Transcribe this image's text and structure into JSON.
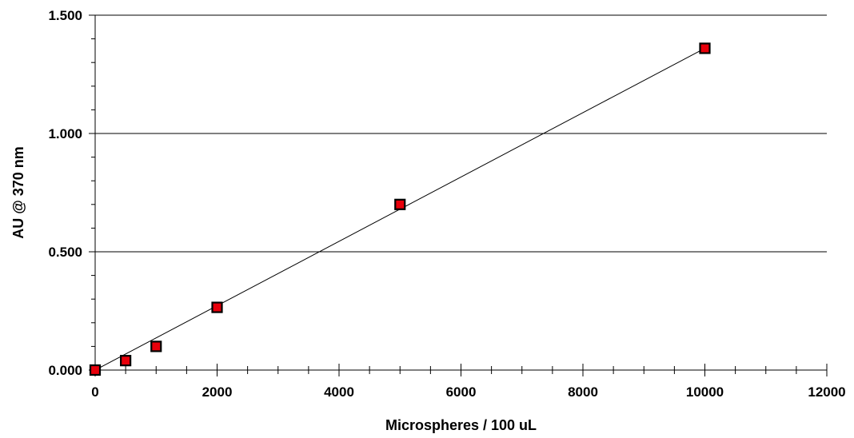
{
  "chart_data": {
    "type": "scatter",
    "title": "",
    "xlabel": "Microspheres / 100 uL",
    "ylabel": "AU @ 370 nm",
    "xlim": [
      0,
      12000
    ],
    "ylim": [
      0,
      1.5
    ],
    "x_ticks": [
      "0",
      "2000",
      "4000",
      "6000",
      "8000",
      "10000",
      "12000"
    ],
    "x_tick_values": [
      0,
      2000,
      4000,
      6000,
      8000,
      10000,
      12000
    ],
    "x_minor_step": 500,
    "y_ticks": [
      "0.000",
      "0.500",
      "1.000",
      "1.500"
    ],
    "y_tick_values": [
      0,
      0.5,
      1.0,
      1.5
    ],
    "y_minor_step": 0.1,
    "grid": "horizontal",
    "legend": "none",
    "series": [
      {
        "points": [
          {
            "x": 0,
            "y": 0.0
          },
          {
            "x": 500,
            "y": 0.04
          },
          {
            "x": 1000,
            "y": 0.1
          },
          {
            "x": 2000,
            "y": 0.265
          },
          {
            "x": 5000,
            "y": 0.7
          },
          {
            "x": 10000,
            "y": 1.36
          }
        ],
        "marker": "square",
        "marker_color": "#e8000b",
        "marker_edge": "#000000"
      }
    ],
    "trendline": {
      "type": "linear",
      "x": [
        0,
        10000
      ],
      "y": [
        0.0,
        1.36
      ],
      "color": "#000000"
    }
  }
}
